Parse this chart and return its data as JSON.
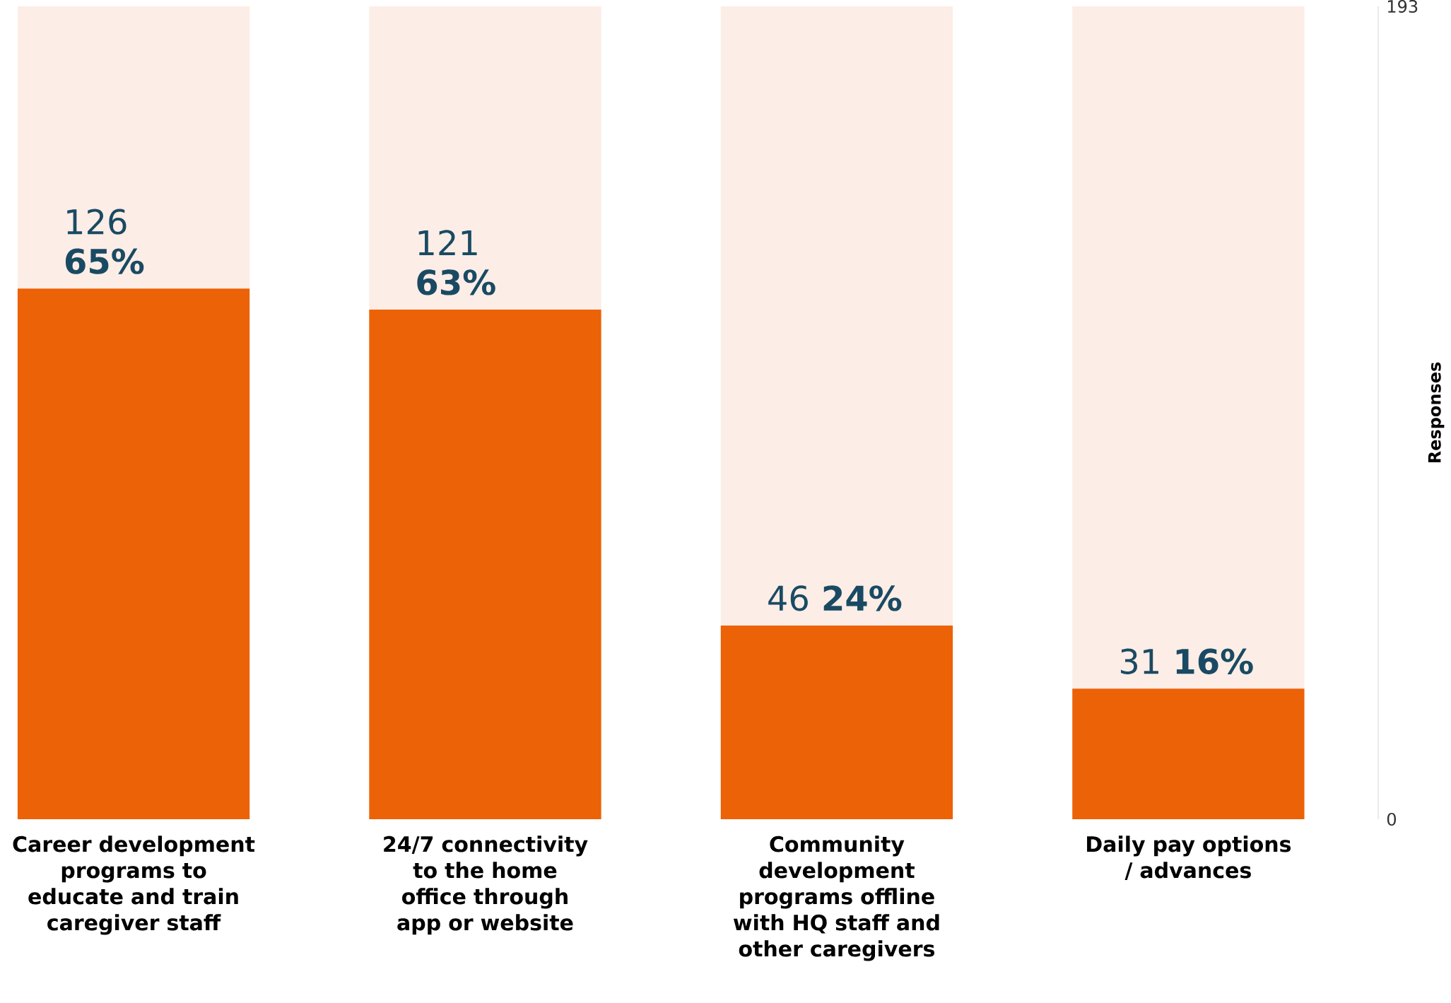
{
  "chart_data": {
    "type": "bar",
    "stacked": true,
    "ylabel": "Responses",
    "categories": [
      "Career development programs to educate and train caregiver staff",
      "24/7 connectivity to the home office through app or website",
      "Community development programs offline with HQ staff and other caregivers",
      "Daily pay options / advances"
    ],
    "ylim": [
      0,
      193
    ],
    "yticks": [
      0,
      193
    ],
    "series": [
      {
        "color": "#ec6207",
        "values": [
          126,
          121,
          46,
          31
        ],
        "value_labels": [
          "126 **65%**",
          "121 **63%**",
          "46 **24%**",
          "31 **16%**"
        ]
      },
      {
        "color": "#fcede6",
        "values": [
          67,
          72,
          147,
          162
        ]
      }
    ]
  }
}
